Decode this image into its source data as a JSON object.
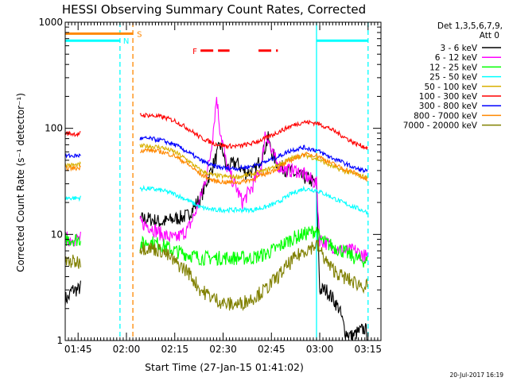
{
  "chart_data": {
    "type": "line",
    "title": "HESSI Observing Summary Count Rates, Corrected",
    "xlabel": "Start Time (27-Jan-15 01:41:02)",
    "ylabel": "Corrected Count Rate (s⁻¹ detector⁻¹)",
    "y_log_scale": true,
    "ylim": [
      1,
      1000
    ],
    "yticks": [
      {
        "value": 1,
        "label": "1"
      },
      {
        "value": 10,
        "label": "10"
      },
      {
        "value": 100,
        "label": "100"
      },
      {
        "value": 1000,
        "label": "1000"
      }
    ],
    "x_range_minutes": [
      0,
      98
    ],
    "xticks": [
      {
        "minutes": 4,
        "label": "01:45"
      },
      {
        "minutes": 19,
        "label": "02:00"
      },
      {
        "minutes": 34,
        "label": "02:15"
      },
      {
        "minutes": 49,
        "label": "02:30"
      },
      {
        "minutes": 64,
        "label": "02:45"
      },
      {
        "minutes": 79,
        "label": "03:00"
      },
      {
        "minutes": 94,
        "label": "03:15"
      }
    ],
    "legend": {
      "placement": "right",
      "header_line1": "Det 1,3,5,6,7,9,",
      "header_line2": "Att 0",
      "entries": [
        {
          "label": "3 - 6 keV",
          "color": "#000000"
        },
        {
          "label": "6 - 12 keV",
          "color": "#ff00ff"
        },
        {
          "label": "12 - 25 keV",
          "color": "#00ff00"
        },
        {
          "label": "25 - 50 keV",
          "color": "#00ffff"
        },
        {
          "label": "50 - 100 keV",
          "color": "#d8b000"
        },
        {
          "label": "100 - 300 keV",
          "color": "#ff0000"
        },
        {
          "label": "300 - 800 keV",
          "color": "#0000ff"
        },
        {
          "label": "800 - 7000 keV",
          "color": "#ff8800"
        },
        {
          "label": "7000 - 20000 keV",
          "color": "#808000"
        }
      ]
    },
    "annotations": [
      {
        "text": "S",
        "color": "#ff8800"
      },
      {
        "text": "N",
        "color": "#00ffff"
      },
      {
        "text": "F",
        "color": "#ff0000"
      }
    ],
    "flag_bars": {
      "saa": {
        "color": "#ff8800",
        "y_level": 780,
        "x_minutes": [
          0,
          21
        ]
      },
      "night": [
        {
          "color": "#00ffff",
          "y_level": 670,
          "x_minutes": [
            0,
            17
          ]
        },
        {
          "color": "#00ffff",
          "y_level": 670,
          "x_minutes": [
            78,
            94
          ]
        }
      ],
      "flare": [
        {
          "color": "#ff0000",
          "y_level": 540,
          "x_minutes": [
            42,
            51
          ]
        },
        {
          "color": "#ff0000",
          "y_level": 540,
          "x_minutes": [
            60,
            66
          ]
        }
      ]
    },
    "vertical_markers_minutes": [
      {
        "x": 17,
        "color": "#00ffff"
      },
      {
        "x": 21,
        "color": "#ff8800"
      },
      {
        "x": 78,
        "color": "#00ffff"
      },
      {
        "x": 94,
        "color": "#00ffff"
      }
    ],
    "data_gap_minutes": [
      5,
      23
    ],
    "series": [
      {
        "name": "3 - 6 keV",
        "color": "#000000",
        "x": [
          0,
          1,
          2,
          3,
          4,
          23,
          26,
          30,
          34,
          38,
          42,
          45,
          47,
          48,
          49,
          50,
          53,
          56,
          59,
          62,
          63,
          64,
          66,
          69,
          72,
          75,
          78,
          79,
          81,
          83,
          85,
          87,
          89,
          91,
          93,
          94
        ],
        "y": [
          2.5,
          2.5,
          3,
          3,
          3,
          14,
          14,
          13,
          14,
          15,
          22,
          38,
          55,
          70,
          60,
          42,
          48,
          38,
          40,
          65,
          80,
          60,
          45,
          40,
          36,
          34,
          30,
          3,
          3,
          2.5,
          2,
          1.2,
          1.1,
          1.2,
          1.3,
          1.1
        ]
      },
      {
        "name": "6 - 12 keV",
        "color": "#ff00ff",
        "x": [
          0,
          4,
          23,
          26,
          30,
          34,
          38,
          40,
          42,
          44,
          45,
          46,
          47,
          48,
          49,
          50,
          52,
          53,
          55,
          58,
          61,
          62,
          63,
          64,
          66,
          69,
          72,
          75,
          78,
          79,
          82,
          86,
          90,
          94
        ],
        "y": [
          9,
          9,
          13,
          12,
          10,
          9,
          11,
          15,
          22,
          38,
          55,
          100,
          200,
          100,
          70,
          45,
          32,
          28,
          20,
          28,
          45,
          90,
          80,
          60,
          45,
          40,
          40,
          35,
          30,
          9,
          8,
          7,
          7,
          6
        ]
      },
      {
        "name": "12 - 25 keV",
        "color": "#00ff00",
        "x": [
          0,
          4,
          23,
          26,
          30,
          34,
          38,
          42,
          46,
          50,
          54,
          58,
          62,
          66,
          70,
          74,
          78,
          79,
          82,
          86,
          90,
          94
        ],
        "y": [
          9,
          9,
          8,
          8.5,
          8,
          7,
          6.5,
          6,
          6,
          6,
          6,
          6,
          6.5,
          7.5,
          9,
          10,
          11,
          9,
          8,
          7,
          6,
          5.5
        ]
      },
      {
        "name": "25 - 50 keV",
        "color": "#00ffff",
        "x": [
          0,
          4,
          23,
          26,
          30,
          34,
          38,
          42,
          46,
          50,
          54,
          58,
          62,
          66,
          70,
          74,
          78,
          82,
          86,
          90,
          94
        ],
        "y": [
          22,
          22,
          27,
          27,
          26,
          24,
          21,
          18,
          17,
          17,
          17,
          17,
          18,
          20,
          24,
          27,
          26,
          23,
          20,
          18,
          16
        ]
      },
      {
        "name": "50 - 100 keV",
        "color": "#d8b000",
        "x": [
          0,
          4,
          23,
          26,
          30,
          34,
          38,
          42,
          46,
          50,
          54,
          58,
          62,
          66,
          70,
          74,
          78,
          82,
          86,
          90,
          94
        ],
        "y": [
          45,
          45,
          68,
          68,
          66,
          60,
          50,
          40,
          36,
          35,
          35,
          37,
          40,
          45,
          52,
          56,
          52,
          45,
          40,
          37,
          34
        ]
      },
      {
        "name": "100 - 300 keV",
        "color": "#ff0000",
        "x": [
          0,
          4,
          23,
          26,
          30,
          34,
          38,
          42,
          46,
          50,
          54,
          58,
          62,
          66,
          70,
          74,
          78,
          82,
          86,
          90,
          94
        ],
        "y": [
          90,
          88,
          133,
          133,
          128,
          118,
          100,
          82,
          72,
          68,
          68,
          72,
          80,
          92,
          105,
          115,
          112,
          100,
          85,
          72,
          65
        ]
      },
      {
        "name": "300 - 800 keV",
        "color": "#0000ff",
        "x": [
          0,
          4,
          23,
          26,
          30,
          34,
          38,
          42,
          46,
          50,
          54,
          58,
          62,
          66,
          70,
          74,
          78,
          82,
          86,
          90,
          94
        ],
        "y": [
          55,
          55,
          80,
          80,
          77,
          70,
          60,
          50,
          44,
          42,
          42,
          44,
          48,
          54,
          62,
          66,
          62,
          54,
          48,
          42,
          39
        ]
      },
      {
        "name": "800 - 7000 keV",
        "color": "#ff8800",
        "x": [
          0,
          4,
          23,
          26,
          30,
          34,
          38,
          42,
          46,
          50,
          54,
          58,
          62,
          66,
          70,
          74,
          78,
          82,
          86,
          90,
          94
        ],
        "y": [
          42,
          42,
          62,
          62,
          60,
          55,
          46,
          37,
          32,
          31,
          31,
          33,
          37,
          42,
          50,
          57,
          56,
          48,
          42,
          38,
          32
        ]
      },
      {
        "name": "7000 - 20000 keV",
        "color": "#808000",
        "x": [
          0,
          4,
          23,
          26,
          30,
          34,
          38,
          42,
          46,
          50,
          54,
          58,
          62,
          66,
          70,
          74,
          78,
          82,
          86,
          90,
          94
        ],
        "y": [
          5.5,
          5.5,
          7.5,
          7.5,
          7,
          5.5,
          4.5,
          3,
          2.5,
          2.2,
          2.2,
          2.5,
          3,
          4,
          5.5,
          7,
          8,
          5,
          4,
          3.5,
          3.2
        ]
      }
    ],
    "footer_date": "20-Jul-2017 16:19"
  }
}
